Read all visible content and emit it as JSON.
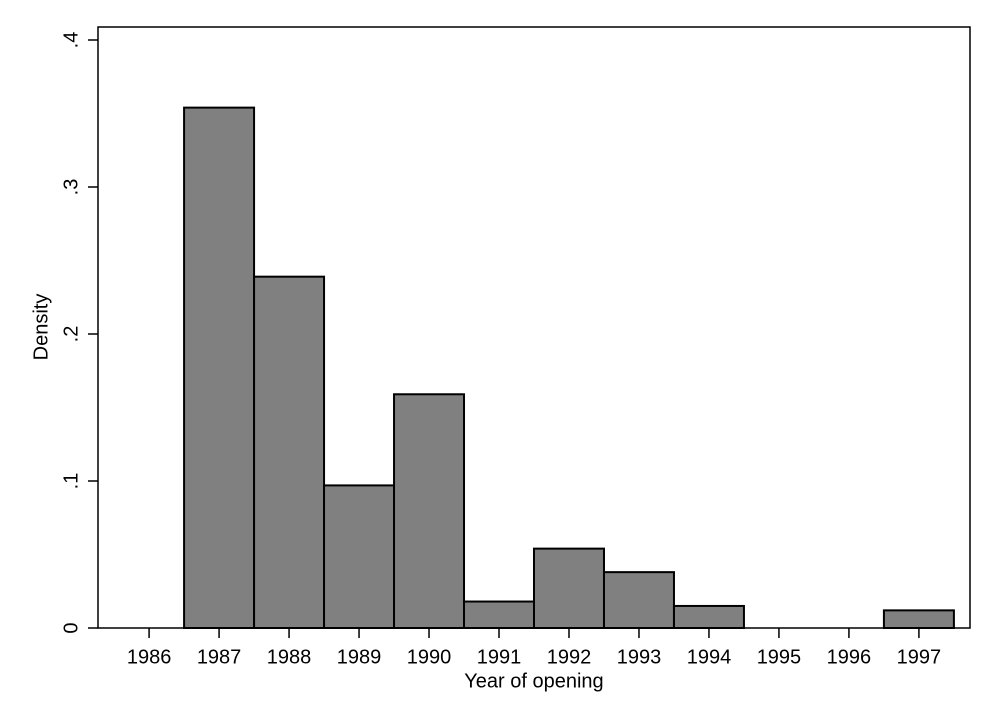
{
  "chart_data": {
    "type": "histogram",
    "x_label": "Year of opening",
    "y_label": "Density",
    "bins": [
      1986.5,
      1987.5,
      1988.5,
      1989.5,
      1990.5,
      1991.5,
      1992.5,
      1993.5,
      1994.5,
      1995.5,
      1996.5,
      1997.5
    ],
    "values": [
      0.354,
      0.239,
      0.097,
      0.159,
      0.018,
      0.054,
      0.038,
      0.015,
      0,
      0,
      0.012
    ],
    "color": "#808080",
    "xlim": [
      1985.27,
      1997.73
    ],
    "xticks": [
      1986,
      1987,
      1988,
      1989,
      1990,
      1991,
      1992,
      1993,
      1994,
      1995,
      1996,
      1997
    ],
    "ylim": [
      0,
      0.4
    ],
    "yticks": [
      0,
      {
        "value": 0.1,
        "label": ".1"
      },
      {
        "value": 0.2,
        "label": ".2"
      },
      {
        "value": 0.3,
        "label": ".3"
      },
      {
        "value": 0.4,
        "label": ".4"
      }
    ]
  }
}
